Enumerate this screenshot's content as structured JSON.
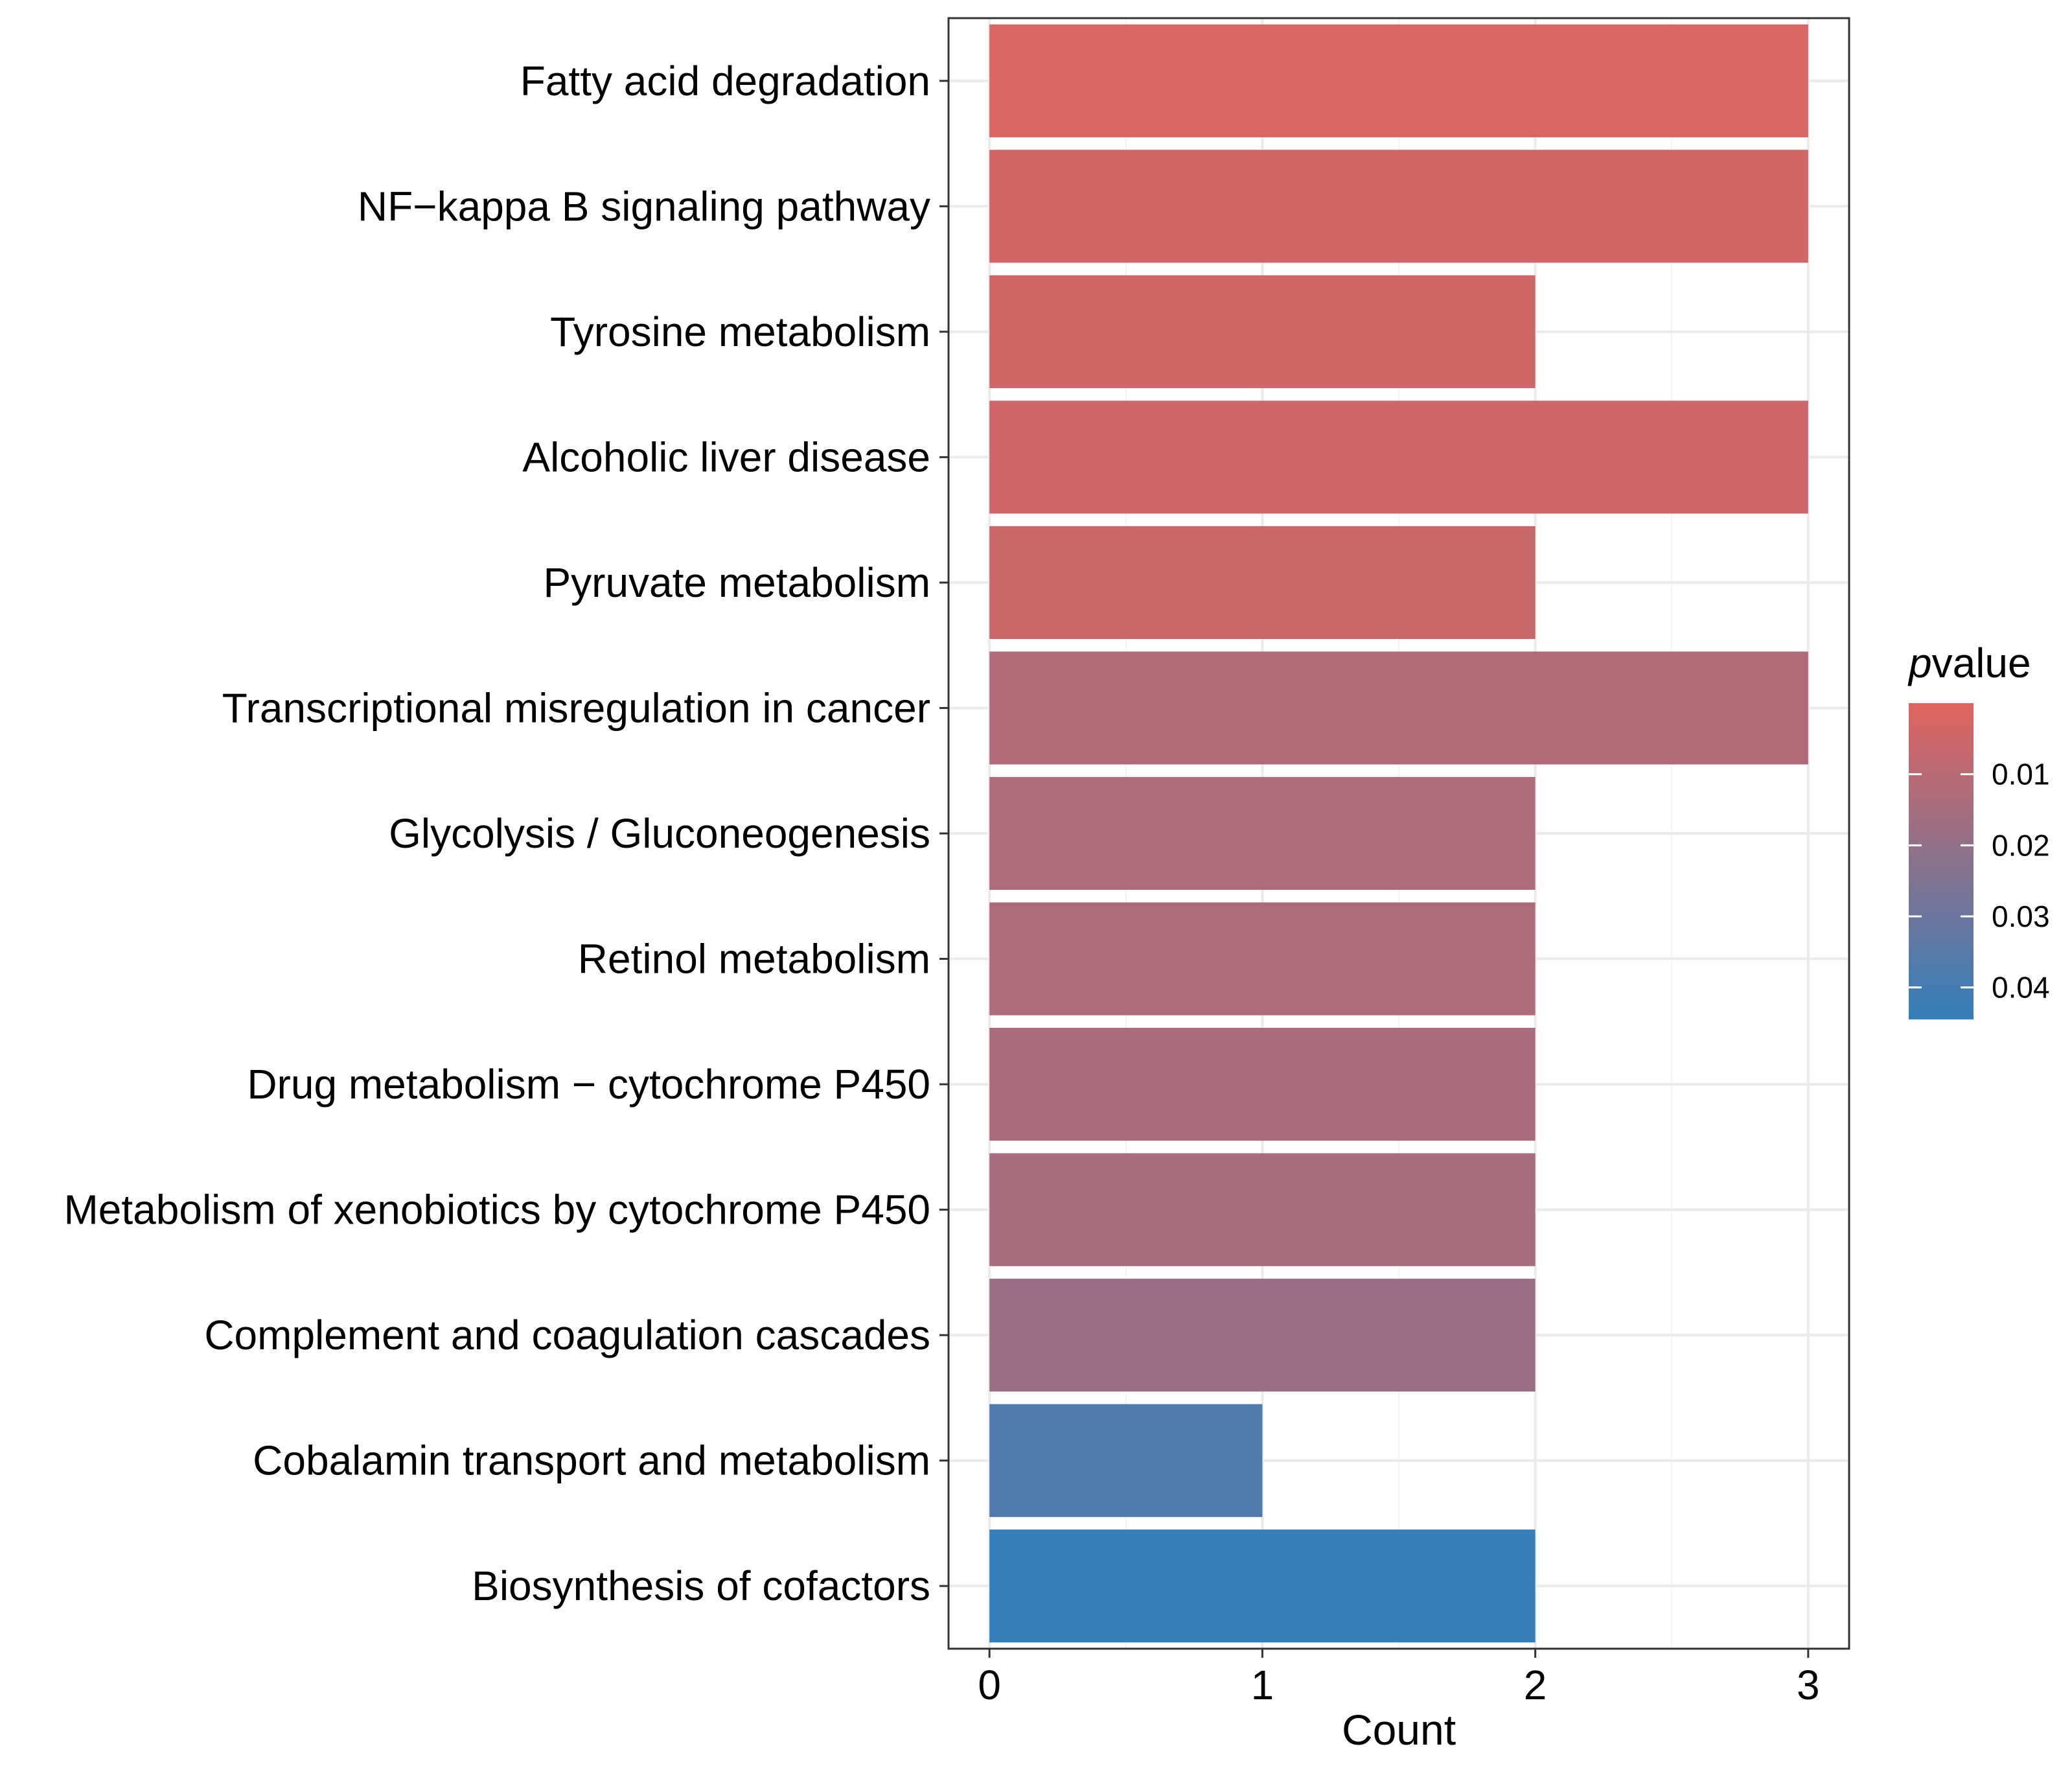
{
  "chart_data": {
    "type": "bar",
    "orientation": "horizontal",
    "categories": [
      "Fatty acid degradation",
      "NF−kappa B signaling pathway",
      "Tyrosine metabolism",
      "Alcoholic liver disease",
      "Pyruvate metabolism",
      "Transcriptional misregulation in cancer",
      "Glycolysis / Gluconeogenesis",
      "Retinol metabolism",
      "Drug metabolism − cytochrome P450",
      "Metabolism of xenobiotics by cytochrome P450",
      "Complement and coagulation cascades",
      "Cobalamin transport and metabolism",
      "Biosynthesis of cofactors"
    ],
    "values": [
      3,
      3,
      2,
      3,
      2,
      3,
      2,
      2,
      2,
      2,
      2,
      1,
      2
    ],
    "pvalues": [
      0.002,
      0.0035,
      0.0045,
      0.005,
      0.006,
      0.012,
      0.013,
      0.013,
      0.014,
      0.015,
      0.018,
      0.037,
      0.044
    ],
    "xlabel": "Count",
    "ylabel": "",
    "xlim": [
      -0.15,
      3.15
    ],
    "xticks": [
      "0",
      "1",
      "2",
      "3"
    ],
    "grid": true,
    "legend": {
      "title_italic": "p",
      "title_rest": "value",
      "placement": "right",
      "range": [
        0.0,
        0.0445
      ],
      "ticks": [
        0.01,
        0.02,
        0.03,
        0.04
      ],
      "tick_labels": [
        "0.01",
        "0.02",
        "0.03",
        "0.04"
      ],
      "color_low_p": "#E0645F",
      "color_high_p": "#337FBB"
    },
    "colors": {
      "panel_background": "#FFFFFF",
      "grid_major": "#EBEBEB",
      "grid_minor": "#F5F5F5",
      "axis_line": "#333333",
      "tick_mark": "#333333"
    }
  }
}
